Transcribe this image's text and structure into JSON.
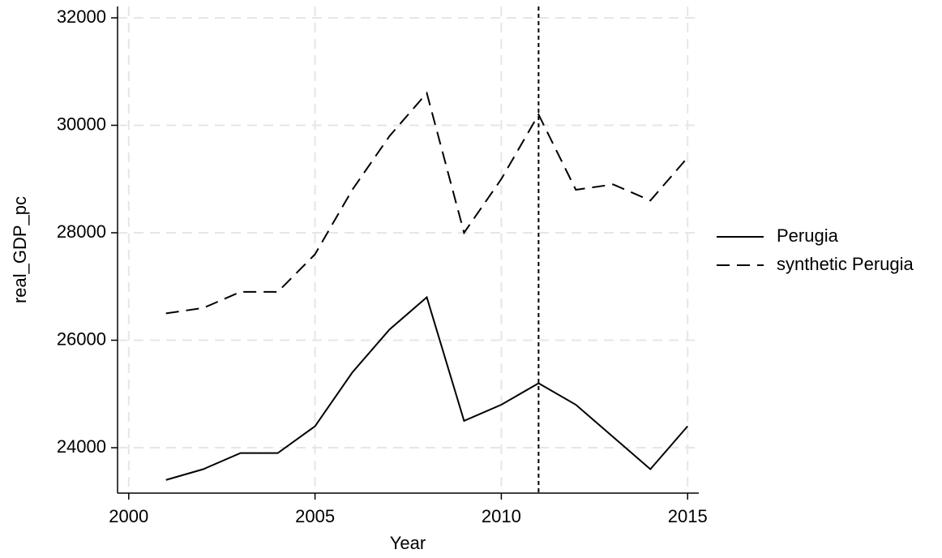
{
  "chart_data": {
    "type": "line",
    "x": [
      2001,
      2002,
      2003,
      2004,
      2005,
      2006,
      2007,
      2008,
      2009,
      2010,
      2011,
      2012,
      2013,
      2014,
      2015
    ],
    "series": [
      {
        "name": "Perugia",
        "color": "#000000",
        "dash": "solid",
        "values": [
          23400,
          23600,
          23900,
          23900,
          24400,
          25400,
          26200,
          26800,
          24500,
          24800,
          25200,
          24800,
          24200,
          23600,
          24400
        ]
      },
      {
        "name": "synthetic Perugia",
        "color": "#000000",
        "dash": "dashed",
        "values": [
          26500,
          26600,
          26900,
          26900,
          27600,
          28800,
          29800,
          30600,
          28000,
          29000,
          30200,
          28800,
          28900,
          28600,
          29400
        ]
      }
    ],
    "xlabel": "Year",
    "ylabel": "real_GDP_pc",
    "xlim": [
      1999.7,
      2015.3
    ],
    "xticks": [
      2000,
      2005,
      2010,
      2015
    ],
    "ylim": [
      23155,
      32211
    ],
    "yticks": [
      24000,
      26000,
      28000,
      30000,
      32000
    ],
    "vline": 2011,
    "grid": true,
    "legend": "right"
  }
}
